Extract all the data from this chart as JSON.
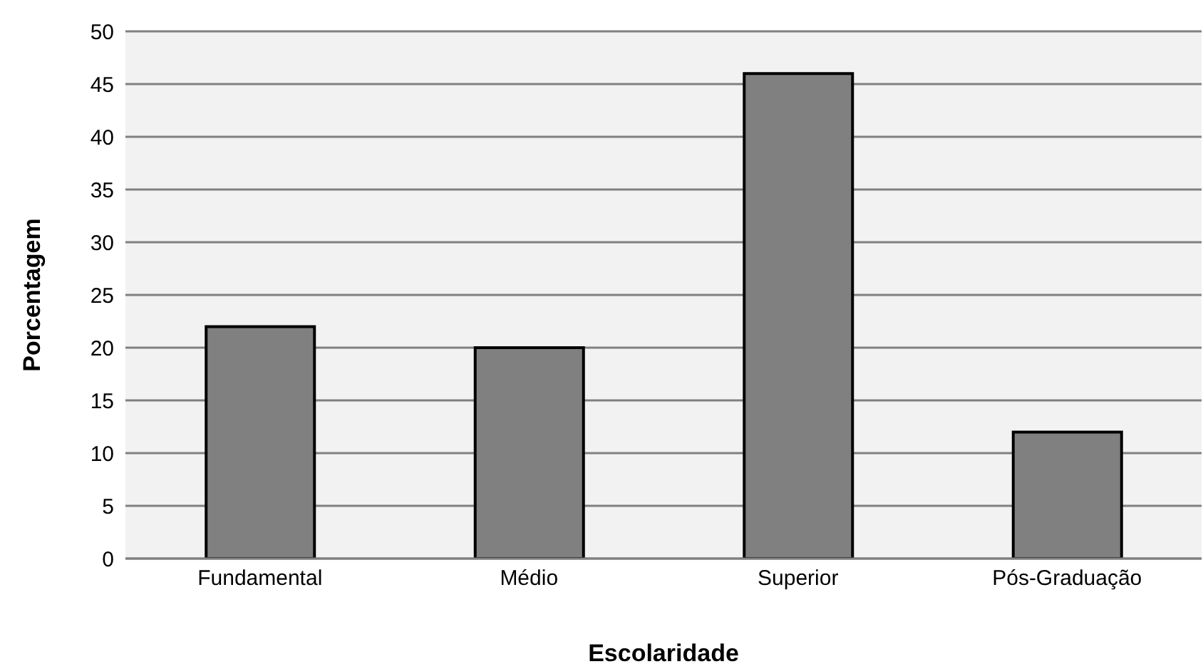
{
  "chart_data": {
    "type": "bar",
    "xlabel": "Escolaridade",
    "ylabel": "Porcentagem",
    "categories": [
      "Fundamental",
      "Médio",
      "Superior",
      "Pós-Graduação"
    ],
    "values": [
      22,
      20,
      46,
      12
    ],
    "color": "#808080",
    "ylim": [
      0,
      50
    ],
    "yticks": [
      0,
      5,
      10,
      15,
      20,
      25,
      30,
      35,
      40,
      45,
      50
    ],
    "grid": "y"
  }
}
